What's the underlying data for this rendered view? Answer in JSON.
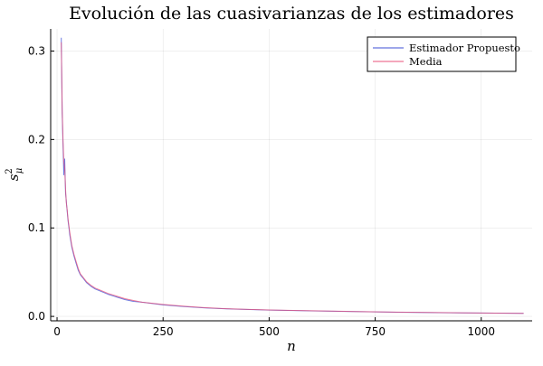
{
  "chart_data": {
    "type": "line",
    "title": "Evolución de las cuasivarianzas de los estimadores",
    "xlabel": "n",
    "ylabel_base": "s",
    "ylabel_sup": "2",
    "ylabel_sub": "μ",
    "xlim": [
      -15,
      1120
    ],
    "ylim": [
      -0.005,
      0.325
    ],
    "x_ticks": [
      0,
      250,
      500,
      750,
      1000
    ],
    "y_ticks": [
      0.0,
      0.1,
      0.2,
      0.3
    ],
    "x_tick_labels": [
      "0",
      "250",
      "500",
      "750",
      "1000"
    ],
    "y_tick_labels": [
      "0.0",
      "0.1",
      "0.2",
      "0.3"
    ],
    "grid": true,
    "legend_position": "top-right",
    "series": [
      {
        "name": "Estimador Propuesto",
        "color": "#3c4fd6",
        "x": [
          10,
          12,
          14,
          16,
          18,
          20,
          22,
          24,
          26,
          28,
          30,
          35,
          40,
          45,
          50,
          55,
          60,
          70,
          80,
          90,
          100,
          120,
          140,
          160,
          180,
          200,
          250,
          300,
          350,
          400,
          500,
          600,
          700,
          800,
          900,
          1000,
          1100
        ],
        "y": [
          0.315,
          0.23,
          0.195,
          0.16,
          0.178,
          0.14,
          0.13,
          0.118,
          0.108,
          0.1,
          0.092,
          0.078,
          0.068,
          0.06,
          0.052,
          0.047,
          0.044,
          0.038,
          0.034,
          0.031,
          0.029,
          0.025,
          0.022,
          0.019,
          0.017,
          0.016,
          0.013,
          0.011,
          0.0095,
          0.0085,
          0.0072,
          0.0062,
          0.0054,
          0.0047,
          0.0042,
          0.0038,
          0.0034
        ]
      },
      {
        "name": "Media",
        "color": "#e8517a",
        "x": [
          10,
          12,
          14,
          16,
          18,
          20,
          22,
          24,
          26,
          28,
          30,
          35,
          40,
          45,
          50,
          55,
          60,
          70,
          80,
          90,
          100,
          120,
          140,
          160,
          180,
          200,
          250,
          300,
          350,
          400,
          500,
          600,
          700,
          800,
          900,
          1000,
          1100
        ],
        "y": [
          0.31,
          0.235,
          0.2,
          0.175,
          0.168,
          0.145,
          0.128,
          0.12,
          0.11,
          0.102,
          0.095,
          0.08,
          0.07,
          0.062,
          0.054,
          0.048,
          0.045,
          0.039,
          0.035,
          0.032,
          0.03,
          0.026,
          0.023,
          0.02,
          0.018,
          0.016,
          0.0135,
          0.0115,
          0.0098,
          0.0087,
          0.0073,
          0.0063,
          0.0055,
          0.0048,
          0.0043,
          0.0038,
          0.0035
        ]
      }
    ]
  }
}
